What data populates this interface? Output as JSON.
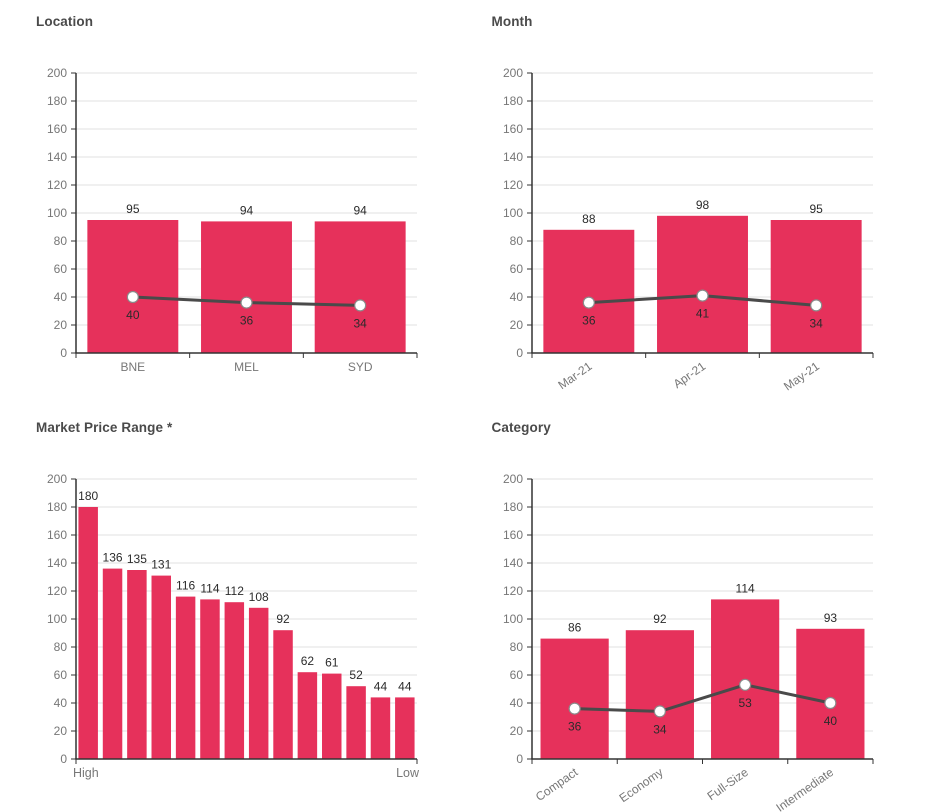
{
  "theme": {
    "background": "#ffffff",
    "bar_color": "#e6315b",
    "line_color": "#4a4a4a",
    "marker_fill": "#ffffff",
    "marker_stroke": "#8a8a8a",
    "axis_color": "#333333",
    "grid_color": "#e0e0e0",
    "tick_label_color": "#777777",
    "data_label_color": "#2b2b2b",
    "title_color": "#4a4a4a"
  },
  "chart_data": [
    {
      "id": "location",
      "type": "bar",
      "title": "Location",
      "categories": [
        "BNE",
        "MEL",
        "SYD"
      ],
      "series": [
        {
          "type": "bar",
          "values": [
            95,
            94,
            94
          ]
        },
        {
          "type": "line",
          "values": [
            40,
            36,
            34
          ]
        }
      ],
      "ylim": [
        0,
        200
      ],
      "ytick_step": 20,
      "grid": true,
      "x_label_rotation": 0,
      "data_labels": true,
      "legend": "none"
    },
    {
      "id": "month",
      "type": "bar",
      "title": "Month",
      "categories": [
        "Mar-21",
        "Apr-21",
        "May-21"
      ],
      "series": [
        {
          "type": "bar",
          "values": [
            88,
            98,
            95
          ]
        },
        {
          "type": "line",
          "values": [
            36,
            41,
            34
          ]
        }
      ],
      "ylim": [
        0,
        200
      ],
      "ytick_step": 20,
      "grid": true,
      "x_label_rotation": -35,
      "data_labels": true,
      "legend": "none"
    },
    {
      "id": "market-price-range",
      "type": "bar",
      "title": "Market Price Range *",
      "x_axis_end_labels": {
        "start": "High",
        "end": "Low"
      },
      "series": [
        {
          "type": "bar",
          "values": [
            180,
            136,
            135,
            131,
            116,
            114,
            112,
            108,
            92,
            62,
            61,
            52,
            44,
            44
          ]
        }
      ],
      "ylim": [
        0,
        200
      ],
      "ytick_step": 20,
      "grid": true,
      "x_label_rotation": 0,
      "data_labels": true,
      "legend": "none"
    },
    {
      "id": "category",
      "type": "bar",
      "title": "Category",
      "categories": [
        "Compact",
        "Economy",
        "Full-Size",
        "Intermediate"
      ],
      "series": [
        {
          "type": "bar",
          "values": [
            86,
            92,
            114,
            93
          ]
        },
        {
          "type": "line",
          "values": [
            36,
            34,
            53,
            40
          ]
        }
      ],
      "ylim": [
        0,
        200
      ],
      "ytick_step": 20,
      "grid": true,
      "x_label_rotation": -35,
      "data_labels": true,
      "legend": "none"
    }
  ]
}
